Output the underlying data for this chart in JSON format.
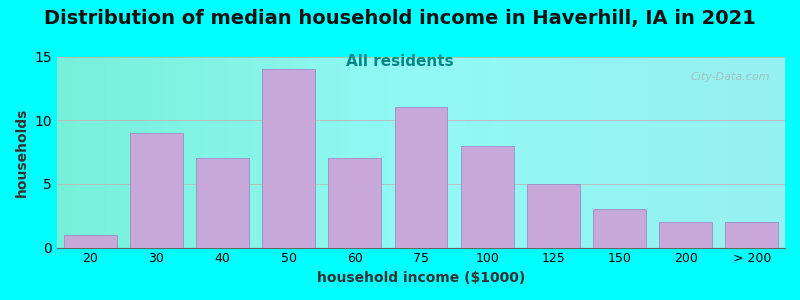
{
  "title": "Distribution of median household income in Haverhill, IA in 2021",
  "subtitle": "All residents",
  "xlabel": "household income ($1000)",
  "ylabel": "households",
  "bar_labels": [
    "20",
    "30",
    "40",
    "50",
    "60",
    "75",
    "100",
    "125",
    "150",
    "200",
    "> 200"
  ],
  "bar_heights": [
    1,
    9,
    7,
    14,
    7,
    11,
    8,
    5,
    3,
    2,
    2
  ],
  "bar_color": "#C8A8D8",
  "bar_edge_color": "#9B7FBF",
  "ylim": [
    0,
    15
  ],
  "yticks": [
    0,
    5,
    10,
    15
  ],
  "background_color": "#00FFFF",
  "plot_bg_colors": [
    "#C8E6C0",
    "#F5F5F0",
    "#FAE8E8"
  ],
  "title_fontsize": 14,
  "subtitle_color": "#008888",
  "subtitle_fontsize": 11,
  "axis_label_fontsize": 10,
  "watermark": "City-Data.com"
}
